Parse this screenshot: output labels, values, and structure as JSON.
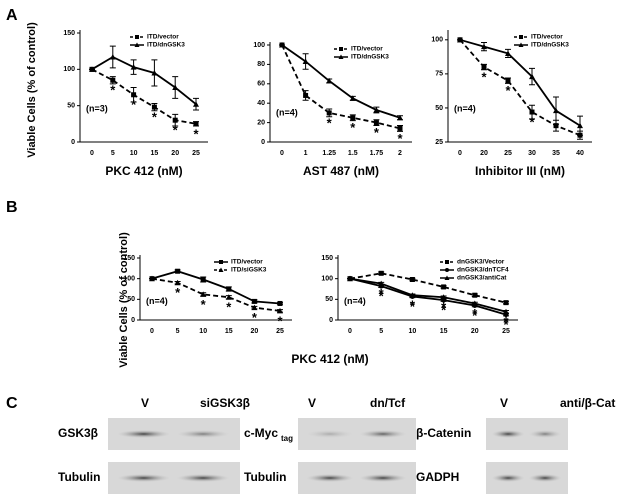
{
  "panel_labels": [
    "A",
    "B",
    "C"
  ],
  "ylabels": [
    "Viable Cells (% of control)",
    "Viable Cells (% of control)"
  ],
  "chart_data": [
    {
      "type": "line",
      "xlabel": "PKC 412 (nM)",
      "categories": [
        "0",
        "5",
        "10",
        "15",
        "20",
        "25"
      ],
      "ylim": [
        0,
        150
      ],
      "yticks": [
        0,
        50,
        100,
        150
      ],
      "annotation": "(n=3)",
      "legend": "upper right",
      "series": [
        {
          "name": "ITD/vector",
          "color": "#000000",
          "dashed": true,
          "marker": "square",
          "values": [
            100,
            85,
            65,
            48,
            30,
            25
          ],
          "errors": [
            0,
            5,
            10,
            5,
            8,
            3
          ],
          "significance": [
            null,
            "*",
            "*",
            "*",
            "*",
            "*"
          ]
        },
        {
          "name": "ITD/dnGSK3",
          "color": "#000000",
          "dashed": false,
          "marker": "triangle",
          "values": [
            100,
            117,
            103,
            95,
            75,
            52
          ],
          "errors": [
            0,
            15,
            10,
            18,
            15,
            8
          ]
        }
      ]
    },
    {
      "type": "line",
      "xlabel": "AST 487 (nM)",
      "categories": [
        "0",
        "1",
        "1.25",
        "1.5",
        "1.75",
        "2"
      ],
      "ylim": [
        0,
        100
      ],
      "yticks": [
        0,
        20,
        40,
        60,
        80,
        100
      ],
      "annotation": "(n=4)",
      "legend": "upper right",
      "series": [
        {
          "name": "ITD/vector",
          "color": "#000000",
          "dashed": true,
          "marker": "square",
          "values": [
            100,
            48,
            30,
            25,
            20,
            14
          ],
          "errors": [
            0,
            5,
            4,
            3,
            3,
            3
          ],
          "significance": [
            null,
            null,
            "*",
            "*",
            "*",
            "*"
          ]
        },
        {
          "name": "ITD/dnGSK3",
          "color": "#000000",
          "dashed": false,
          "marker": "triangle",
          "values": [
            100,
            83,
            63,
            45,
            33,
            25
          ],
          "errors": [
            0,
            8,
            2,
            2,
            3,
            2
          ]
        }
      ]
    },
    {
      "type": "line",
      "xlabel": "Inhibitor III (nM)",
      "categories": [
        "0",
        "20",
        "25",
        "30",
        "35",
        "40"
      ],
      "ylim": [
        25,
        105
      ],
      "yticks": [
        25,
        50,
        75,
        100
      ],
      "annotation": "(n=4)",
      "legend": "upper right",
      "series": [
        {
          "name": "ITD/vector",
          "color": "#000000",
          "dashed": true,
          "marker": "square",
          "values": [
            100,
            80,
            70,
            47,
            37,
            30
          ],
          "errors": [
            0,
            2,
            2,
            5,
            4,
            3
          ],
          "significance": [
            null,
            "*",
            "*",
            "*",
            null,
            null
          ]
        },
        {
          "name": "ITD/dnGSK3",
          "color": "#000000",
          "dashed": false,
          "marker": "triangle",
          "values": [
            100,
            95,
            90,
            73,
            48,
            37
          ],
          "errors": [
            0,
            3,
            3,
            6,
            10,
            7
          ]
        }
      ]
    },
    {
      "type": "line",
      "xlabel": "PKC 412 (nM)",
      "categories": [
        "0",
        "5",
        "10",
        "15",
        "20",
        "25"
      ],
      "ylim": [
        0,
        150
      ],
      "yticks": [
        0,
        50,
        100,
        150
      ],
      "annotation": "(n=4)",
      "legend": "upper right",
      "series": [
        {
          "name": "ITD/vector",
          "color": "#000000",
          "dashed": false,
          "marker": "square",
          "values": [
            100,
            118,
            98,
            75,
            45,
            40
          ],
          "errors": [
            0,
            3,
            6,
            5,
            4,
            2
          ]
        },
        {
          "name": "ITD/siGSK3",
          "color": "#000000",
          "dashed": true,
          "marker": "triangle",
          "values": [
            100,
            90,
            62,
            55,
            30,
            22
          ],
          "errors": [
            0,
            3,
            4,
            4,
            3,
            3
          ],
          "significance": [
            null,
            "*",
            "*",
            "*",
            "*",
            "*"
          ]
        }
      ]
    },
    {
      "type": "line",
      "categories": [
        "0",
        "5",
        "10",
        "15",
        "20",
        "25"
      ],
      "ylim": [
        0,
        150
      ],
      "yticks": [
        0,
        50,
        100,
        150
      ],
      "annotation": "(n=4)",
      "legend": "upper right",
      "series": [
        {
          "name": "dnGSK3/Vector",
          "color": "#000000",
          "dashed": true,
          "marker": "square",
          "values": [
            100,
            113,
            98,
            80,
            60,
            42
          ],
          "errors": [
            0,
            3,
            3,
            3,
            3,
            3
          ]
        },
        {
          "name": "dnGSK3/dnTCF4",
          "color": "#000000",
          "dashed": false,
          "marker": "circle",
          "values": [
            100,
            82,
            57,
            48,
            35,
            13
          ],
          "errors": [
            0,
            3,
            3,
            3,
            3,
            3
          ],
          "significance": [
            null,
            "*",
            "*",
            "*",
            "*",
            "*"
          ]
        },
        {
          "name": "dnGSK3/antiCat",
          "color": "#000000",
          "dashed": false,
          "marker": "triangle",
          "values": [
            100,
            88,
            60,
            55,
            40,
            20
          ],
          "errors": [
            0,
            3,
            3,
            3,
            3,
            3
          ],
          "significance": [
            null,
            "*",
            "*",
            "*",
            "*",
            "*"
          ]
        }
      ]
    }
  ],
  "blots": [
    {
      "header": [
        "V",
        "siGSK3β"
      ],
      "rows": [
        "GSK3β",
        "Tubulin"
      ]
    },
    {
      "header": [
        "V",
        "dn/Tcf"
      ],
      "rows": [
        "c-Myc",
        "Tubulin"
      ],
      "subscript": "tag"
    },
    {
      "header": [
        "V",
        "anti/β-Cat"
      ],
      "rows": [
        "β-Catenin",
        "GADPH"
      ]
    }
  ]
}
